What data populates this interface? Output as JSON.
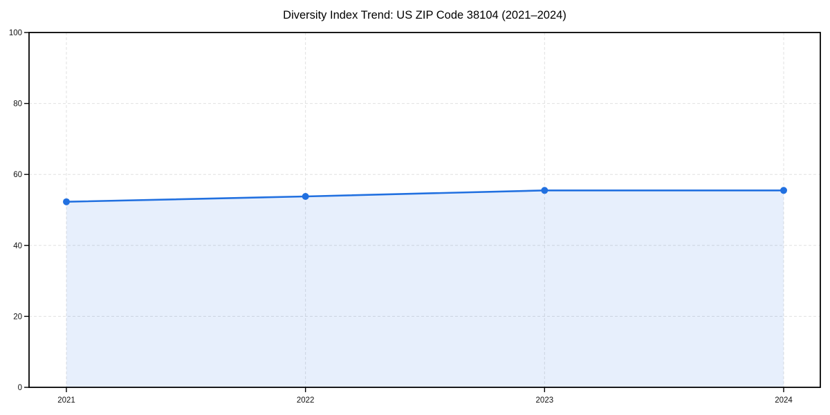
{
  "chart_data": {
    "type": "area",
    "title": "Diversity Index Trend: US ZIP Code 38104 (2021–2024)",
    "categories": [
      "2021",
      "2022",
      "2023",
      "2024"
    ],
    "x": [
      2021,
      2022,
      2023,
      2024
    ],
    "series": [
      {
        "name": "Diversity Index",
        "values": [
          52.3,
          53.8,
          55.5,
          55.5
        ]
      }
    ],
    "xlabel": "",
    "ylabel": "",
    "ylim": [
      0,
      100
    ],
    "yticks": [
      0,
      20,
      40,
      60,
      80,
      100
    ],
    "grid": true,
    "grid_style": "dashed",
    "legend": false,
    "marker": "circle",
    "colors": {
      "line": "#2170e0",
      "marker": "#2170e0",
      "fill": "rgba(33, 112, 224, 0.11)",
      "spine": "#000000",
      "grid": "#e0e0e0",
      "tick_text": "#111111",
      "background": "#ffffff"
    }
  }
}
